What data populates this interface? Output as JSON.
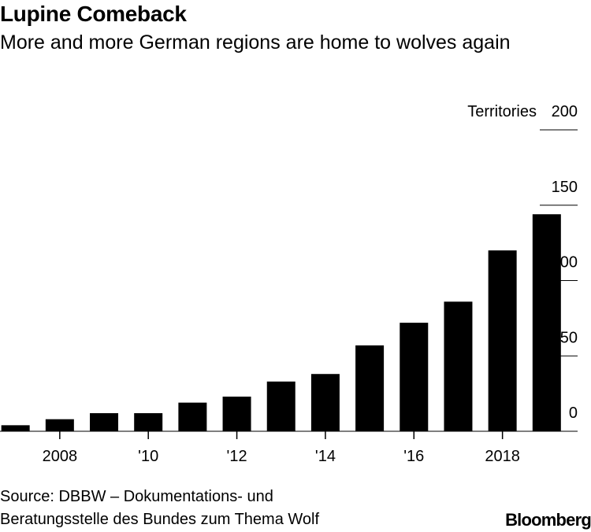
{
  "header": {
    "title": "Lupine Comeback",
    "subtitle": "More and more German regions are home to wolves again"
  },
  "footer": {
    "source_line1": "Source: DBBW – Dokumentations- und",
    "source_line2": "Beratungsstelle des Bundes zum Thema Wolf",
    "brand": "Bloomberg"
  },
  "chart_data": {
    "type": "bar",
    "title": "Lupine Comeback",
    "subtitle": "More and more German regions are home to wolves again",
    "ylabel": "Territories",
    "ylim": [
      0,
      200
    ],
    "yticks": [
      0,
      50,
      100,
      150,
      200
    ],
    "ytick_labels": [
      "0",
      "50",
      "100",
      "150",
      "200"
    ],
    "xlim": [
      2006.65,
      2020
    ],
    "categories": [
      2007,
      2008,
      2009,
      2010,
      2011,
      2012,
      2013,
      2014,
      2015,
      2016,
      2017,
      2018,
      2019
    ],
    "values": [
      4,
      8,
      12,
      12,
      19,
      23,
      33,
      38,
      57,
      72,
      86,
      120,
      144
    ],
    "xticks": [
      2008,
      2010,
      2012,
      2014,
      2016,
      2018
    ],
    "xtick_labels": [
      "2008",
      "'10",
      "'12",
      "'14",
      "'16",
      "2018"
    ],
    "grid": false,
    "bar_color": "#000000"
  }
}
